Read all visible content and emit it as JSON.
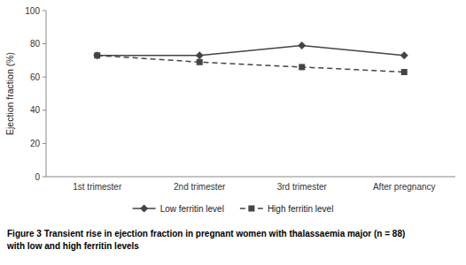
{
  "chart_data": {
    "type": "line",
    "categories": [
      "1st trimester",
      "2nd trimester",
      "3rd trimester",
      "After pregnancy"
    ],
    "series": [
      {
        "name": "Low ferritin level",
        "color": "#444444",
        "marker": "diamond",
        "line_style": "solid",
        "values": [
          73,
          73,
          79,
          73
        ]
      },
      {
        "name": "High ferritin level",
        "color": "#444444",
        "marker": "square",
        "line_style": "dashed",
        "values": [
          73,
          69,
          66,
          63
        ]
      }
    ],
    "y_label": "Ejection fraction (%)",
    "ylim": [
      0,
      100
    ],
    "yticks": [
      0,
      20,
      40,
      60,
      80,
      100
    ],
    "grid": false,
    "legend": "bottom",
    "annotations": [
      "Figure 3 Transient rise in ejection fraction in pregnant women with thalassaemia major (n = 88)",
      "with low and high ferritin levels"
    ]
  }
}
